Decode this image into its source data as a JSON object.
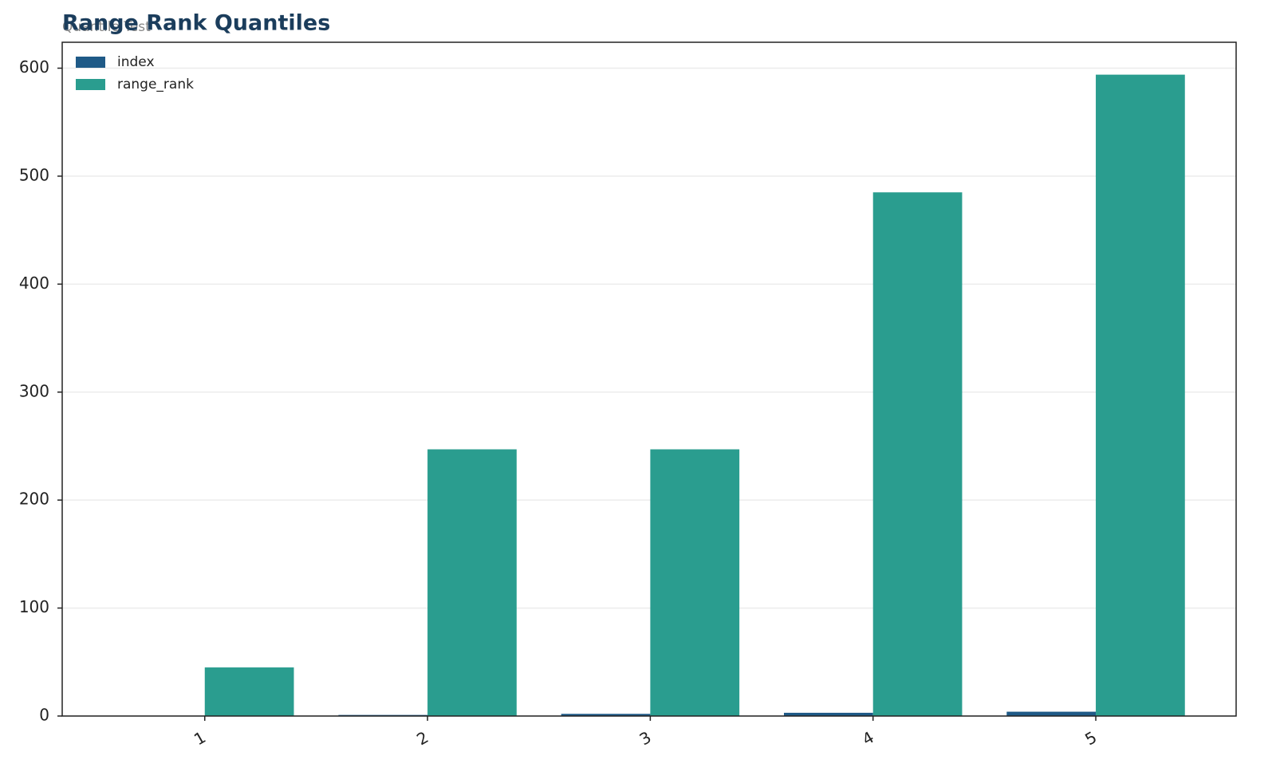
{
  "chart_data": {
    "type": "bar",
    "title": "Range Rank Quantiles",
    "subtitle": "Quantile Test",
    "categories": [
      "1",
      "2",
      "3",
      "4",
      "5"
    ],
    "series": [
      {
        "name": "index",
        "color": "#1f5a87",
        "values": [
          0,
          1,
          2,
          3,
          4
        ]
      },
      {
        "name": "range_rank",
        "color": "#2a9d8f",
        "values": [
          45,
          247,
          247,
          485,
          594
        ]
      }
    ],
    "ylim": [
      0,
      624
    ],
    "yticks": [
      0,
      100,
      200,
      300,
      400,
      500,
      600
    ],
    "grid": true,
    "legend": "upper left"
  }
}
